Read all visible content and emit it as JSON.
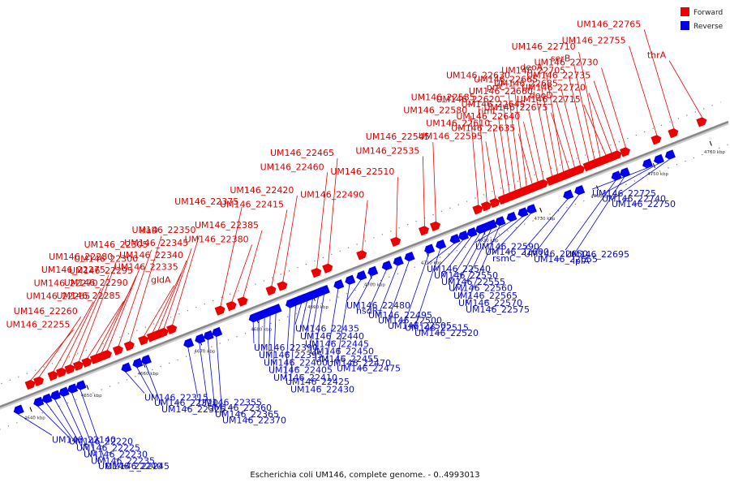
{
  "title": "Escherichia coli UM146, complete genome. - 0..4993013",
  "legend": [
    {
      "label": "Forward",
      "color": "#ee0000"
    },
    {
      "label": "Reverse",
      "color": "#0000ee"
    }
  ],
  "colors": {
    "forward": "#ee0000",
    "reverse": "#0000ee",
    "backbone": "#888888"
  },
  "ticks": [
    {
      "label": "4640 kbp",
      "kbp": 4640
    },
    {
      "label": "4650 kbp",
      "kbp": 4650
    },
    {
      "label": "4660 kbp",
      "kbp": 4660
    },
    {
      "label": "4670 kbp",
      "kbp": 4670
    },
    {
      "label": "4680 kbp",
      "kbp": 4680
    },
    {
      "label": "4690 kbp",
      "kbp": 4690
    },
    {
      "label": "4700 kbp",
      "kbp": 4700
    },
    {
      "label": "4710 kbp",
      "kbp": 4710
    },
    {
      "label": "4720 kbp",
      "kbp": 4720
    },
    {
      "label": "4730 kbp",
      "kbp": 4730
    },
    {
      "label": "4740 kbp",
      "kbp": 4740
    },
    {
      "label": "4750 kbp",
      "kbp": 4750
    },
    {
      "label": "4760 kbp",
      "kbp": 4760
    }
  ],
  "forward_genes": [
    {
      "name": "UM146_22255",
      "kbp": 4641.5
    },
    {
      "name": "UM146_22260",
      "kbp": 4643.0
    },
    {
      "name": "UM146_22265",
      "kbp": 4645.5
    },
    {
      "name": "UM146_22270",
      "kbp": 4647.0
    },
    {
      "name": "UM146_22275",
      "kbp": 4648.5
    },
    {
      "name": "UM146_22280",
      "kbp": 4650.0
    },
    {
      "name": "UM146_22285",
      "kbp": 4651.5
    },
    {
      "name": "UM146_22290",
      "kbp": 4653.0
    },
    {
      "name": "UM146_22295",
      "kbp": 4654.0
    },
    {
      "name": "UM146_22300",
      "kbp": 4655.0
    },
    {
      "name": "UM146_22305",
      "kbp": 4657.0
    },
    {
      "name": "iraD",
      "kbp": 4659.0
    },
    {
      "name": "gldA",
      "kbp": 4661.5
    },
    {
      "name": "UM146_22335",
      "kbp": 4663.0
    },
    {
      "name": "UM146_22340",
      "kbp": 4664.0
    },
    {
      "name": "UM146_22345",
      "kbp": 4665.0
    },
    {
      "name": "UM146_22350",
      "kbp": 4666.5
    },
    {
      "name": "UM146_22375",
      "kbp": 4675.0
    },
    {
      "name": "UM146_22380",
      "kbp": 4677.0
    },
    {
      "name": "UM146_22385",
      "kbp": 4679.0
    },
    {
      "name": "UM146_22415",
      "kbp": 4684.0
    },
    {
      "name": "UM146_22420",
      "kbp": 4686.0
    },
    {
      "name": "UM146_22460",
      "kbp": 4692.0
    },
    {
      "name": "UM146_22465",
      "kbp": 4694.0
    },
    {
      "name": "UM146_22490",
      "kbp": 4700.0
    },
    {
      "name": "UM146_22510",
      "kbp": 4706.0
    },
    {
      "name": "UM146_22535",
      "kbp": 4711.0
    },
    {
      "name": "UM146_22545",
      "kbp": 4713.0
    },
    {
      "name": "UM146_22580",
      "kbp": 4720.5
    },
    {
      "name": "UM146_22585",
      "kbp": 4722.0
    },
    {
      "name": "UM146_22595",
      "kbp": 4723.5
    },
    {
      "name": "UM146_22610",
      "kbp": 4725.0
    },
    {
      "name": "rimI",
      "kbp": 4726.0
    },
    {
      "name": "UM146_22620",
      "kbp": 4727.0
    },
    {
      "name": "prfC",
      "kbp": 4728.0
    },
    {
      "name": "UM146_22630",
      "kbp": 4729.0
    },
    {
      "name": "UM146_22635",
      "kbp": 4730.0
    },
    {
      "name": "UM146_22640",
      "kbp": 4731.0
    },
    {
      "name": "UM146_22645",
      "kbp": 4732.0
    },
    {
      "name": "UM146_22660",
      "kbp": 4733.5
    },
    {
      "name": "UM146_22665",
      "kbp": 4734.5
    },
    {
      "name": "deoA",
      "kbp": 4735.5
    },
    {
      "name": "UM146_22675",
      "kbp": 4736.5
    },
    {
      "name": "deoD",
      "kbp": 4737.5
    },
    {
      "name": "UM146_22685",
      "kbp": 4738.5
    },
    {
      "name": "UM146_22705",
      "kbp": 4740.0
    },
    {
      "name": "serB",
      "kbp": 4741.0
    },
    {
      "name": "UM146_22710",
      "kbp": 4742.0
    },
    {
      "name": "UM146_22715",
      "kbp": 4743.0
    },
    {
      "name": "UM146_22720",
      "kbp": 4744.0
    },
    {
      "name": "UM146_22735",
      "kbp": 4745.0
    },
    {
      "name": "UM146_22730",
      "kbp": 4746.5
    },
    {
      "name": "UM146_22755",
      "kbp": 4752.0
    },
    {
      "name": "UM146_22765",
      "kbp": 4755.0
    },
    {
      "name": "thrA",
      "kbp": 4760.0
    }
  ],
  "reverse_genes": [
    {
      "name": "UM146_22140",
      "kbp": 4638.0
    },
    {
      "name": "UM146_22220",
      "kbp": 4641.5
    },
    {
      "name": "UM146_22225",
      "kbp": 4643.0
    },
    {
      "name": "UM146_22230",
      "kbp": 4644.5
    },
    {
      "name": "UM146_22235",
      "kbp": 4646.0
    },
    {
      "name": "UM146_22240",
      "kbp": 4647.5
    },
    {
      "name": "UM146_22245",
      "kbp": 4649.0
    },
    {
      "name": "UM146_22315",
      "kbp": 4657.0
    },
    {
      "name": "UM146_22320",
      "kbp": 4659.0
    },
    {
      "name": "UM146_22325",
      "kbp": 4660.5
    },
    {
      "name": "UM146_22355",
      "kbp": 4668.0
    },
    {
      "name": "UM146_22360",
      "kbp": 4670.0
    },
    {
      "name": "UM146_22365",
      "kbp": 4671.5
    },
    {
      "name": "UM146_22370",
      "kbp": 4673.0
    },
    {
      "name": "UM146_22390",
      "kbp": 4679.5
    },
    {
      "name": "UM146_22395",
      "kbp": 4680.5
    },
    {
      "name": "UM146_22400",
      "kbp": 4681.5
    },
    {
      "name": "UM146_22405",
      "kbp": 4682.5
    },
    {
      "name": "UM146_22410",
      "kbp": 4683.5
    },
    {
      "name": "UM146_22425",
      "kbp": 4686.0
    },
    {
      "name": "UM146_22430",
      "kbp": 4687.0
    },
    {
      "name": "UM146_22435",
      "kbp": 4688.0
    },
    {
      "name": "UM146_22440",
      "kbp": 4689.0
    },
    {
      "name": "UM146_22445",
      "kbp": 4690.0
    },
    {
      "name": "UM146_22450",
      "kbp": 4691.0
    },
    {
      "name": "UM146_22455",
      "kbp": 4692.0
    },
    {
      "name": "UM146_22470",
      "kbp": 4694.5
    },
    {
      "name": "UM146_22475",
      "kbp": 4696.5
    },
    {
      "name": "UM146_22480",
      "kbp": 4698.5
    },
    {
      "name": "hsdR",
      "kbp": 4700.5
    },
    {
      "name": "UM146_22495",
      "kbp": 4703.0
    },
    {
      "name": "UM146_22500",
      "kbp": 4705.0
    },
    {
      "name": "UM146_22505",
      "kbp": 4707.0
    },
    {
      "name": "UM146_22515",
      "kbp": 4710.5
    },
    {
      "name": "UM146_22520",
      "kbp": 4712.5
    },
    {
      "name": "UM146_22540",
      "kbp": 4715.0
    },
    {
      "name": "UM146_22550",
      "kbp": 4716.5
    },
    {
      "name": "UM146_22555",
      "kbp": 4718.0
    },
    {
      "name": "UM146_22560",
      "kbp": 4719.5
    },
    {
      "name": "UM146_22565",
      "kbp": 4720.5
    },
    {
      "name": "UM146_22570",
      "kbp": 4721.5
    },
    {
      "name": "UM146_22575",
      "kbp": 4723.0
    },
    {
      "name": "UM146_22590",
      "kbp": 4725.0
    },
    {
      "name": "UM146_22600",
      "kbp": 4727.0
    },
    {
      "name": "rsmC",
      "kbp": 4728.5
    },
    {
      "name": "UM146_22650",
      "kbp": 4735.0
    },
    {
      "name": "UM146_22655",
      "kbp": 4737.0
    },
    {
      "name": "UM146_22695",
      "kbp": 4743.5
    },
    {
      "name": "lplA",
      "kbp": 4745.0
    },
    {
      "name": "UM146_22725",
      "kbp": 4749.0
    },
    {
      "name": "UM146_22740",
      "kbp": 4751.0
    },
    {
      "name": "UM146_22750",
      "kbp": 4753.0
    }
  ]
}
